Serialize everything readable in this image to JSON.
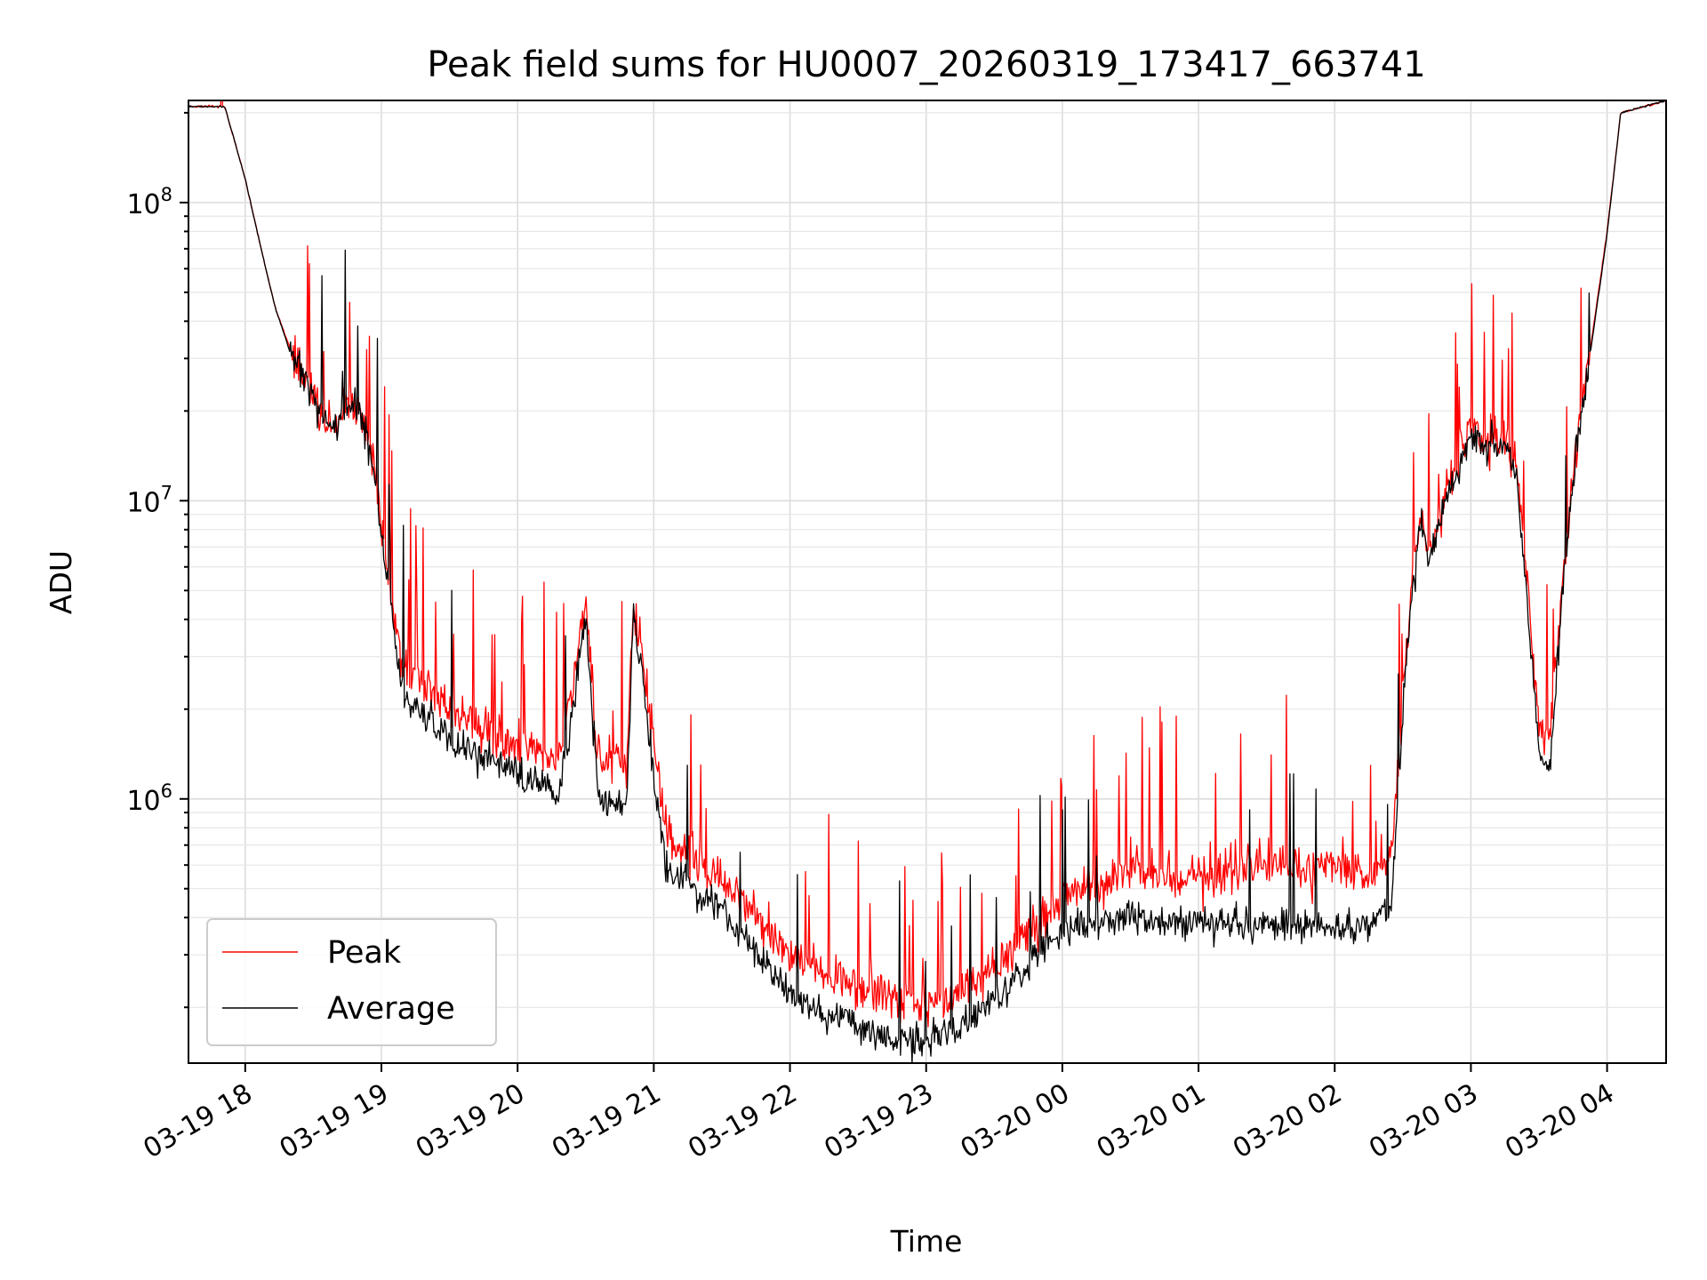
{
  "chart_data": {
    "type": "line",
    "title": "Peak field sums for HU0007_20260319_173417_663741",
    "xlabel": "Time",
    "ylabel": "ADU",
    "yscale": "log",
    "xlim": [
      "2026-03-19 17:35",
      "2026-03-20 04:26"
    ],
    "ylim": [
      130000,
      220000000
    ],
    "grid": true,
    "legend_position": "lower-left",
    "x_ticks": [
      {
        "t": "2026-03-19 18:00",
        "label": "03-19 18"
      },
      {
        "t": "2026-03-19 19:00",
        "label": "03-19 19"
      },
      {
        "t": "2026-03-19 20:00",
        "label": "03-19 20"
      },
      {
        "t": "2026-03-19 21:00",
        "label": "03-19 21"
      },
      {
        "t": "2026-03-19 22:00",
        "label": "03-19 22"
      },
      {
        "t": "2026-03-19 23:00",
        "label": "03-19 23"
      },
      {
        "t": "2026-03-20 00:00",
        "label": "03-20 00"
      },
      {
        "t": "2026-03-20 01:00",
        "label": "03-20 01"
      },
      {
        "t": "2026-03-20 02:00",
        "label": "03-20 02"
      },
      {
        "t": "2026-03-20 03:00",
        "label": "03-20 03"
      },
      {
        "t": "2026-03-20 04:00",
        "label": "03-20 04"
      }
    ],
    "y_ticks": [
      {
        "value": 1000000,
        "base": "10",
        "exp": "6"
      },
      {
        "value": 10000000,
        "base": "10",
        "exp": "7"
      },
      {
        "value": 100000000,
        "base": "10",
        "exp": "8"
      }
    ],
    "series": [
      {
        "name": "Peak",
        "color": "#ff0000",
        "noise": 0.22,
        "spike_prob": 0.06,
        "x": [
          "2026-03-19 17:35",
          "2026-03-19 17:51",
          "2026-03-19 18:00",
          "2026-03-19 18:07",
          "2026-03-19 18:13",
          "2026-03-19 18:20",
          "2026-03-19 18:26",
          "2026-03-19 18:32",
          "2026-03-19 18:36",
          "2026-03-19 18:41",
          "2026-03-19 18:46",
          "2026-03-19 18:51",
          "2026-03-19 18:56",
          "2026-03-19 19:00",
          "2026-03-19 19:02",
          "2026-03-19 19:05",
          "2026-03-19 19:07",
          "2026-03-19 19:10",
          "2026-03-19 19:30",
          "2026-03-19 20:00",
          "2026-03-19 20:18",
          "2026-03-19 20:24",
          "2026-03-19 20:30",
          "2026-03-19 20:35",
          "2026-03-19 20:40",
          "2026-03-19 20:48",
          "2026-03-19 20:51",
          "2026-03-19 20:55",
          "2026-03-19 21:00",
          "2026-03-19 21:05",
          "2026-03-19 21:10",
          "2026-03-19 21:30",
          "2026-03-19 22:00",
          "2026-03-19 22:30",
          "2026-03-19 22:55",
          "2026-03-19 23:15",
          "2026-03-19 23:40",
          "2026-03-20 00:00",
          "2026-03-20 00:30",
          "2026-03-20 01:00",
          "2026-03-20 01:30",
          "2026-03-20 02:00",
          "2026-03-20 02:15",
          "2026-03-20 02:25",
          "2026-03-20 02:32",
          "2026-03-20 02:36",
          "2026-03-20 02:38",
          "2026-03-20 02:42",
          "2026-03-20 02:48",
          "2026-03-20 02:53",
          "2026-03-20 03:00",
          "2026-03-20 03:06",
          "2026-03-20 03:10",
          "2026-03-20 03:16",
          "2026-03-20 03:20",
          "2026-03-20 03:25",
          "2026-03-20 03:30",
          "2026-03-20 03:35",
          "2026-03-20 03:40",
          "2026-03-20 03:46",
          "2026-03-20 03:52",
          "2026-03-20 04:00",
          "2026-03-20 04:06",
          "2026-03-20 04:26"
        ],
        "y": [
          210000000,
          210000000,
          120000000,
          70000000,
          45000000,
          32000000,
          27000000,
          21000000,
          19000000,
          18500000,
          23000000,
          20000000,
          14000000,
          8500000,
          6500000,
          4500000,
          3500000,
          2800000,
          2000000,
          1500000,
          1400000,
          2300000,
          4700000,
          1400000,
          1300000,
          1300000,
          4500000,
          3000000,
          1500000,
          800000,
          700000,
          550000,
          300000,
          240000,
          200000,
          230000,
          310000,
          480000,
          580000,
          550000,
          600000,
          580000,
          550000,
          650000,
          3500000,
          7000000,
          9000000,
          7000000,
          10000000,
          13000000,
          18000000,
          15500000,
          16000000,
          15500000,
          13000000,
          5000000,
          1700000,
          1600000,
          5000000,
          15000000,
          30000000,
          80000000,
          200000000,
          220000000
        ]
      },
      {
        "name": "Average",
        "color": "#000000",
        "noise": 0.16,
        "spike_prob": 0.02,
        "x": [
          "2026-03-19 17:35",
          "2026-03-19 17:51",
          "2026-03-19 18:00",
          "2026-03-19 18:07",
          "2026-03-19 18:13",
          "2026-03-19 18:20",
          "2026-03-19 18:26",
          "2026-03-19 18:32",
          "2026-03-19 18:36",
          "2026-03-19 18:41",
          "2026-03-19 18:46",
          "2026-03-19 18:51",
          "2026-03-19 18:56",
          "2026-03-19 19:00",
          "2026-03-19 19:02",
          "2026-03-19 19:05",
          "2026-03-19 19:07",
          "2026-03-19 19:10",
          "2026-03-19 19:30",
          "2026-03-19 20:00",
          "2026-03-19 20:18",
          "2026-03-19 20:24",
          "2026-03-19 20:30",
          "2026-03-19 20:35",
          "2026-03-19 20:40",
          "2026-03-19 20:48",
          "2026-03-19 20:51",
          "2026-03-19 20:55",
          "2026-03-19 21:00",
          "2026-03-19 21:05",
          "2026-03-19 21:10",
          "2026-03-19 21:30",
          "2026-03-19 22:00",
          "2026-03-19 22:30",
          "2026-03-19 22:55",
          "2026-03-19 23:15",
          "2026-03-19 23:40",
          "2026-03-20 00:00",
          "2026-03-20 00:30",
          "2026-03-20 01:00",
          "2026-03-20 01:30",
          "2026-03-20 02:00",
          "2026-03-20 02:15",
          "2026-03-20 02:25",
          "2026-03-20 02:32",
          "2026-03-20 02:36",
          "2026-03-20 02:38",
          "2026-03-20 02:42",
          "2026-03-20 02:48",
          "2026-03-20 02:53",
          "2026-03-20 03:00",
          "2026-03-20 03:06",
          "2026-03-20 03:10",
          "2026-03-20 03:16",
          "2026-03-20 03:20",
          "2026-03-20 03:25",
          "2026-03-20 03:30",
          "2026-03-20 03:35",
          "2026-03-20 03:40",
          "2026-03-20 03:46",
          "2026-03-20 03:52",
          "2026-03-20 04:00",
          "2026-03-20 04:06",
          "2026-03-20 04:26"
        ],
        "y": [
          210000000,
          210000000,
          120000000,
          70000000,
          45000000,
          31000000,
          26500000,
          20000000,
          18000000,
          17500000,
          22000000,
          19000000,
          13500000,
          8000000,
          6000000,
          4000000,
          3000000,
          2200000,
          1600000,
          1200000,
          1050000,
          1900000,
          4300000,
          1100000,
          950000,
          950000,
          4200000,
          2600000,
          1200000,
          600000,
          550000,
          420000,
          220000,
          170000,
          150000,
          170000,
          250000,
          370000,
          400000,
          380000,
          380000,
          370000,
          370000,
          450000,
          3300000,
          6800000,
          8500000,
          6500000,
          9500000,
          12500000,
          17000000,
          15000000,
          15500000,
          15000000,
          12500000,
          4500000,
          1400000,
          1300000,
          4500000,
          14000000,
          29000000,
          78000000,
          200000000,
          220000000
        ]
      }
    ]
  }
}
